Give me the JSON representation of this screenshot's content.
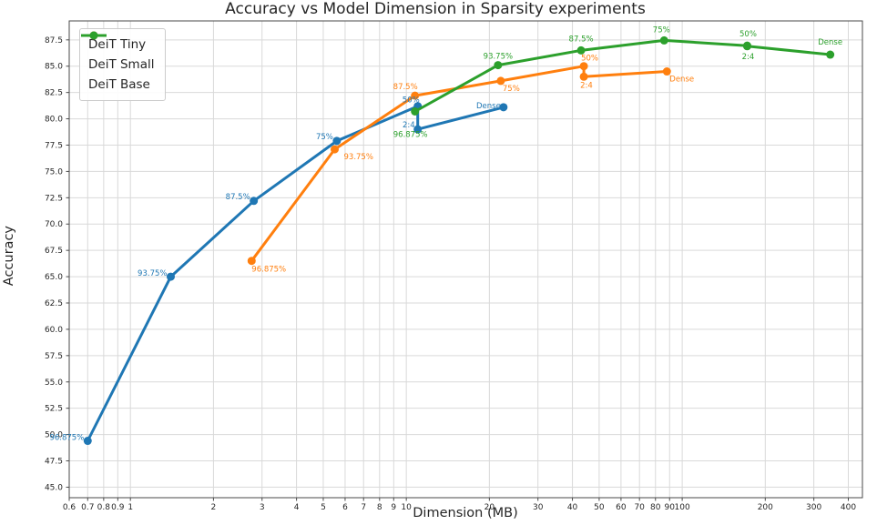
{
  "chart_data": {
    "type": "line",
    "title": "Accuracy vs Model Dimension in Sparsity experiments",
    "xlabel": "Dimension (MB)",
    "ylabel": "Accuracy",
    "x_scale": "log",
    "xlim": [
      0.6,
      450
    ],
    "ylim": [
      44,
      89.3
    ],
    "grid": true,
    "legend_position": "upper left",
    "x_ticks": [
      0.6,
      0.7,
      0.8,
      0.9,
      1,
      2,
      3,
      4,
      5,
      6,
      7,
      8,
      9,
      10,
      20,
      30,
      40,
      50,
      60,
      70,
      80,
      90,
      100,
      200,
      300,
      400
    ],
    "x_tick_labels": [
      "0.6",
      "0.7",
      "0.8",
      "0.9",
      "1",
      "2",
      "3",
      "4",
      "5",
      "6",
      "7",
      "8",
      "9",
      "10",
      "20",
      "30",
      "40",
      "50",
      "60",
      "70",
      "80",
      "90",
      "100",
      "200",
      "300",
      "400"
    ],
    "y_ticks": [
      45.0,
      47.5,
      50.0,
      52.5,
      55.0,
      57.5,
      60.0,
      62.5,
      65.0,
      67.5,
      70.0,
      72.5,
      75.0,
      77.5,
      80.0,
      82.5,
      85.0,
      87.5
    ],
    "y_tick_labels": [
      "45.0",
      "47.5",
      "50.0",
      "52.5",
      "55.0",
      "57.5",
      "60.0",
      "62.5",
      "65.0",
      "67.5",
      "70.0",
      "72.5",
      "75.0",
      "77.5",
      "80.0",
      "82.5",
      "85.0",
      "87.5"
    ],
    "series": [
      {
        "name": "DeiT Tiny",
        "color": "#1f77b4",
        "points": [
          {
            "label": "96.875%",
            "x": 0.7,
            "y": 49.4,
            "anchor": "end",
            "dx": -4,
            "dy": -1
          },
          {
            "label": "93.75%",
            "x": 1.4,
            "y": 65.0,
            "anchor": "end",
            "dx": -4,
            "dy": -1
          },
          {
            "label": "87.5%",
            "x": 2.8,
            "y": 72.2,
            "anchor": "end",
            "dx": -4,
            "dy": -2
          },
          {
            "label": "75%",
            "x": 5.6,
            "y": 77.9,
            "anchor": "end",
            "dx": -4,
            "dy": -2
          },
          {
            "label": "50%",
            "x": 11,
            "y": 81.2,
            "anchor": "end",
            "dx": 2,
            "dy": -4
          },
          {
            "label": "2:4",
            "x": 11,
            "y": 79.0,
            "anchor": "end",
            "dx": -3,
            "dy": -2
          },
          {
            "label": "Dense",
            "x": 22.5,
            "y": 81.1,
            "anchor": "end",
            "dx": -3,
            "dy": 1
          }
        ]
      },
      {
        "name": "DeiT Small",
        "color": "#ff7f0e",
        "points": [
          {
            "label": "96.875%",
            "x": 2.75,
            "y": 66.5,
            "anchor": "start",
            "dx": 0,
            "dy": 12
          },
          {
            "label": "93.75%",
            "x": 5.5,
            "y": 77.1,
            "anchor": "start",
            "dx": 10,
            "dy": 11
          },
          {
            "label": "87.5%",
            "x": 10.75,
            "y": 82.2,
            "anchor": "end",
            "dx": 3,
            "dy": -7
          },
          {
            "label": "75%",
            "x": 22,
            "y": 83.6,
            "anchor": "start",
            "dx": 2,
            "dy": 11
          },
          {
            "label": "50%",
            "x": 44,
            "y": 85.0,
            "anchor": "start",
            "dx": -3,
            "dy": -6
          },
          {
            "label": "2:4",
            "x": 44,
            "y": 84.0,
            "anchor": "start",
            "dx": -4,
            "dy": 12
          },
          {
            "label": "Dense",
            "x": 88,
            "y": 84.5,
            "anchor": "start",
            "dx": 3,
            "dy": 11
          }
        ]
      },
      {
        "name": "DeiT Base",
        "color": "#2ca02c",
        "points": [
          {
            "label": "96.875%",
            "x": 10.75,
            "y": 80.7,
            "anchor": "middle",
            "dx": -5,
            "dy": 28
          },
          {
            "label": "93.75%",
            "x": 21.5,
            "y": 85.1,
            "anchor": "middle",
            "dx": 0,
            "dy": -7
          },
          {
            "label": "87.5%",
            "x": 43,
            "y": 86.5,
            "anchor": "middle",
            "dx": 0,
            "dy": -10
          },
          {
            "label": "75%",
            "x": 86,
            "y": 87.45,
            "anchor": "middle",
            "dx": -3,
            "dy": -9
          },
          {
            "label": "50%",
            "x": 172,
            "y": 86.95,
            "anchor": "middle",
            "dx": 1,
            "dy": -10
          },
          {
            "label": "2:4",
            "x": 172,
            "y": 86.9,
            "anchor": "middle",
            "dx": 1,
            "dy": 14
          },
          {
            "label": "Dense",
            "x": 344,
            "y": 86.1,
            "anchor": "middle",
            "dx": 0,
            "dy": -11
          }
        ]
      }
    ],
    "style": {
      "grid_color": "#d9d9d9",
      "spine_color": "#4a4a4a",
      "tick_color": "#262626",
      "annotation_font_px": 8.5,
      "tick_font_px": 9
    }
  }
}
